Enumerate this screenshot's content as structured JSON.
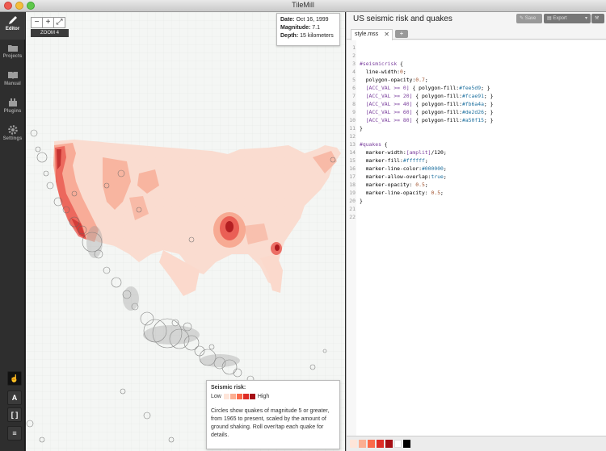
{
  "window": {
    "title": "TileMill"
  },
  "sidebar": {
    "items": [
      {
        "label": "Editor",
        "icon": "pencil-icon"
      },
      {
        "label": "Projects",
        "icon": "folder-icon"
      },
      {
        "label": "Manual",
        "icon": "book-icon"
      },
      {
        "label": "Plugins",
        "icon": "plugin-icon"
      },
      {
        "label": "Settings",
        "icon": "gear-icon"
      }
    ],
    "tools": [
      {
        "label": "☝",
        "icon": "hand-pointer-icon"
      },
      {
        "label": "A",
        "icon": "font-icon"
      },
      {
        "label": "[ ]",
        "icon": "brackets-icon"
      },
      {
        "label": "≡",
        "icon": "layers-icon"
      }
    ]
  },
  "map": {
    "zoom_out": "−",
    "zoom_in": "+",
    "fullscreen": "⤢",
    "zoom_label": "ZOOM 4",
    "tooltip": {
      "date_label": "Date:",
      "date": "Oct 16, 1999",
      "magnitude_label": "Magnitude:",
      "magnitude": "7.1",
      "depth_label": "Depth:",
      "depth": "15 kilometers"
    },
    "legend": {
      "title": "Seismic risk:",
      "low": "Low",
      "high": "High",
      "colors": [
        "#fee5d9",
        "#fcae91",
        "#fb6a4a",
        "#de2d26",
        "#a50f15"
      ],
      "description": "Circles show quakes of magnitude 5 or greater, from 1965 to present, scaled by the amount of ground shaking. Roll over/tap each quake for details."
    }
  },
  "editor": {
    "project_title": "US seismic risk and quakes",
    "save_label": "Save",
    "export_label": "Export",
    "tab_label": "style.mss",
    "tab_close": "✕",
    "tab_add": "+",
    "lines": [
      "",
      "",
      "#seismicrisk {",
      "  line-width:0;",
      "  polygon-opacity:0.7;",
      "  [ACC_VAL >= 0] { polygon-fill:#fee5d9; }",
      "  [ACC_VAL >= 20] { polygon-fill:#fcae91; }",
      "  [ACC_VAL >= 40] { polygon-fill:#fb6a4a; }",
      "  [ACC_VAL >= 60] { polygon-fill:#de2d26; }",
      "  [ACC_VAL >= 80] { polygon-fill:#a50f15; }",
      "}",
      "",
      "#quakes {",
      "  marker-width:[amplit]/120;",
      "  marker-fill:#ffffff;",
      "  marker-line-color:#000000;",
      "  marker-allow-overlap:true;",
      "  marker-opacity: 0.5;",
      "  marker-line-opacity: 0.5;",
      "}",
      "",
      ""
    ],
    "palette": [
      "#fee5d9",
      "#fcae91",
      "#fb6a4a",
      "#de2d26",
      "#a50f15",
      "#ffffff",
      "#000000"
    ]
  }
}
